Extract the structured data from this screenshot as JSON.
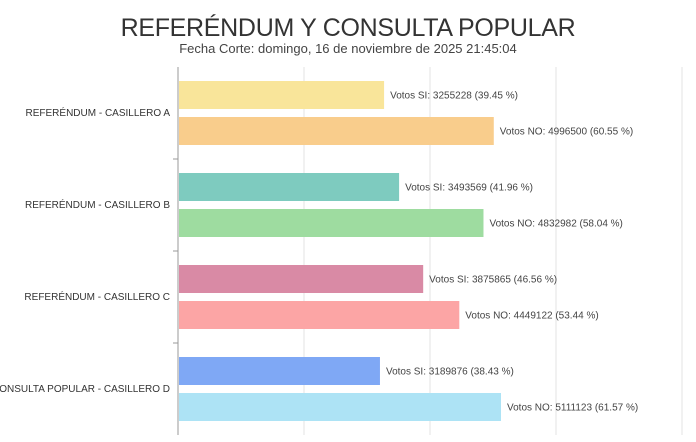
{
  "chart_data": {
    "type": "bar",
    "orientation": "horizontal",
    "title": "REFERÉNDUM Y CONSULTA POPULAR",
    "subtitle": "Fecha Corte: domingo, 16 de noviembre de 2025 21:45:04",
    "xlim": [
      0,
      8000000
    ],
    "grid": true,
    "categories": [
      "REFERÉNDUM - CASILLERO A",
      "REFERÉNDUM - CASILLERO B",
      "REFERÉNDUM - CASILLERO C",
      "CONSULTA POPULAR - CASILLERO D"
    ],
    "bars": [
      [
        {
          "value": 3255228,
          "label": "Votos SI: 3255228 (39.45 %)",
          "color": "#f9e59a"
        },
        {
          "value": 4996500,
          "label": "Votos NO: 4996500 (60.55 %)",
          "color": "#f9cd8c"
        }
      ],
      [
        {
          "value": 3493569,
          "label": "Votos SI: 3493569 (41.96 %)",
          "color": "#7ecbbf"
        },
        {
          "value": 4832982,
          "label": "Votos NO: 4832982 (58.04 %)",
          "color": "#9edca0"
        }
      ],
      [
        {
          "value": 3875865,
          "label": "Votos SI: 3875865 (46.56 %)",
          "color": "#d98aa5"
        },
        {
          "value": 4449122,
          "label": "Votos NO: 4449122 (53.44 %)",
          "color": "#fca5a5"
        }
      ],
      [
        {
          "value": 3189876,
          "label": "Votos SI: 3189876 (38.43 %)",
          "color": "#7fa8f5"
        },
        {
          "value": 5111123,
          "label": "Votos NO: 5111123 (61.57 %)",
          "color": "#ade3f5"
        }
      ]
    ]
  }
}
